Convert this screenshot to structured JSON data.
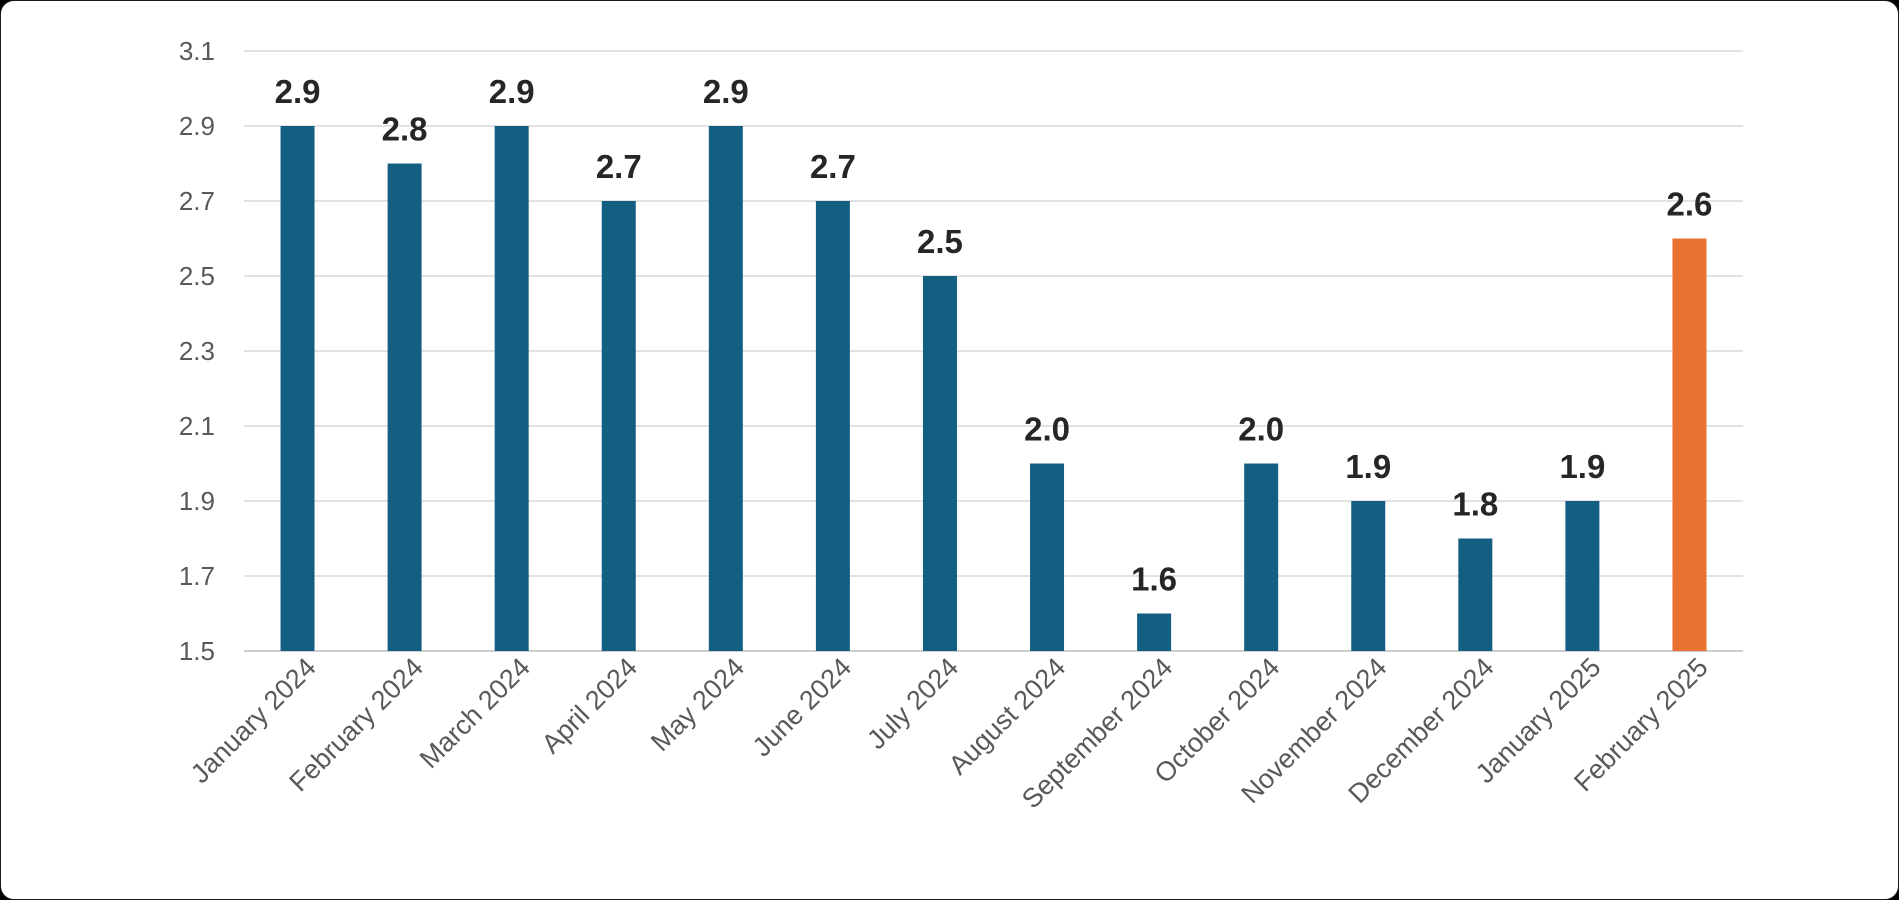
{
  "colors": {
    "primary_bar": "#135f81",
    "highlight_bar": "#e97132",
    "grid": "#d9d9d9"
  },
  "chart_data": {
    "type": "bar",
    "categories": [
      "January 2024",
      "February 2024",
      "March 2024",
      "April 2024",
      "May 2024",
      "June 2024",
      "July 2024",
      "August 2024",
      "September 2024",
      "October 2024",
      "November 2024",
      "December 2024",
      "January 2025",
      "February 2025"
    ],
    "values": [
      2.9,
      2.8,
      2.9,
      2.7,
      2.9,
      2.7,
      2.5,
      2.0,
      1.6,
      2.0,
      1.9,
      1.8,
      1.9,
      2.6
    ],
    "value_labels": [
      "2.9",
      "2.8",
      "2.9",
      "2.7",
      "2.9",
      "2.7",
      "2.5",
      "2.0",
      "1.6",
      "2.0",
      "1.9",
      "1.8",
      "1.9",
      "2.6"
    ],
    "highlight_index": 13,
    "title": "",
    "xlabel": "",
    "ylabel": "",
    "ylim": [
      1.5,
      3.1
    ],
    "yticks": [
      "1.5",
      "1.7",
      "1.9",
      "2.1",
      "2.3",
      "2.5",
      "2.7",
      "2.9",
      "3.1"
    ],
    "grid": true,
    "legend": "none"
  }
}
